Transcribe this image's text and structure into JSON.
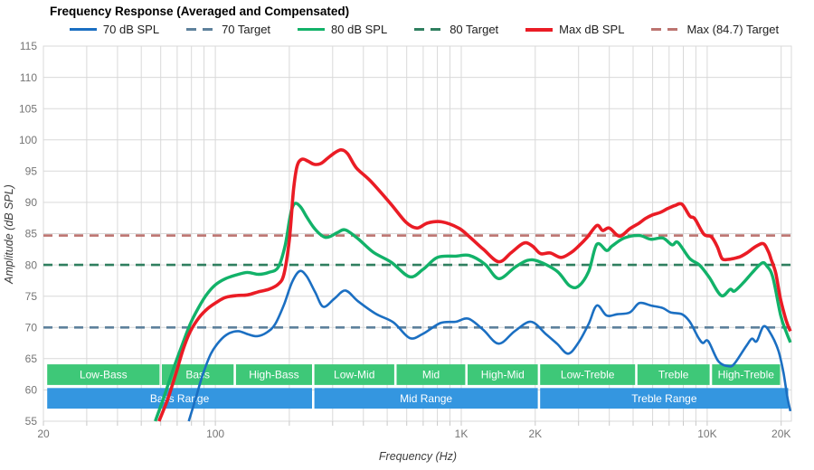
{
  "chart_data": {
    "type": "line",
    "title": "Frequency Response (Averaged and Compensated)",
    "xlabel": "Frequency (Hz)",
    "ylabel": "Amplitude (dB SPL)",
    "x_scale": "log",
    "xlim": [
      20,
      22000
    ],
    "ylim": [
      55,
      115
    ],
    "grid": true,
    "legend_position": "top",
    "colors": {
      "grid": "#d9d9d9",
      "tick_text": "#757575",
      "axis_title_text": "#3c3c3c",
      "blue_curve": "#1b6fc2",
      "green_curve": "#12b269",
      "red_curve": "#ea1c25",
      "blue_target": "#5e819c",
      "green_target": "#2f7f5f",
      "red_target": "#bc7470",
      "sub_band": "#3ec878",
      "main_band": "#3496e0"
    },
    "y_ticks": [
      55,
      60,
      65,
      70,
      75,
      80,
      85,
      90,
      95,
      100,
      105,
      110,
      115
    ],
    "x_ticks": [
      {
        "f": 20,
        "label": "20"
      },
      {
        "f": 100,
        "label": "100"
      },
      {
        "f": 1000,
        "label": "1K"
      },
      {
        "f": 2000,
        "label": "2K"
      },
      {
        "f": 10000,
        "label": "10K"
      },
      {
        "f": 20000,
        "label": "20K"
      }
    ],
    "x_gridlines": [
      20,
      30,
      40,
      50,
      60,
      70,
      80,
      90,
      100,
      200,
      300,
      400,
      500,
      600,
      700,
      800,
      900,
      1000,
      2000,
      3000,
      4000,
      5000,
      6000,
      7000,
      8000,
      9000,
      10000,
      20000
    ],
    "targets": [
      {
        "name": "70 Target",
        "value": 70,
        "color": "#5e819c"
      },
      {
        "name": "80 Target",
        "value": 80,
        "color": "#2f7f5f"
      },
      {
        "name": "Max (84.7) Target",
        "value": 84.7,
        "color": "#bc7470"
      }
    ],
    "series": [
      {
        "name": "70 dB SPL",
        "color": "#1b6fc2",
        "width": 2.6,
        "points": [
          [
            78,
            55
          ],
          [
            83,
            58.5
          ],
          [
            89,
            62.5
          ],
          [
            96,
            65.8
          ],
          [
            104,
            67.8
          ],
          [
            113,
            69
          ],
          [
            124,
            69.4
          ],
          [
            136,
            68.9
          ],
          [
            148,
            68.6
          ],
          [
            162,
            69.2
          ],
          [
            175,
            70.5
          ],
          [
            190,
            73.6
          ],
          [
            205,
            77.2
          ],
          [
            220,
            79
          ],
          [
            235,
            78.2
          ],
          [
            255,
            75.6
          ],
          [
            275,
            73.3
          ],
          [
            305,
            74.6
          ],
          [
            338,
            75.9
          ],
          [
            380,
            74.2
          ],
          [
            448,
            72.2
          ],
          [
            530,
            70.8
          ],
          [
            617,
            68.3
          ],
          [
            700,
            69
          ],
          [
            823,
            70.7
          ],
          [
            950,
            70.9
          ],
          [
            1070,
            71.4
          ],
          [
            1230,
            69.6
          ],
          [
            1420,
            67.4
          ],
          [
            1650,
            69.4
          ],
          [
            1920,
            70.9
          ],
          [
            2200,
            69
          ],
          [
            2450,
            67.4
          ],
          [
            2720,
            65.8
          ],
          [
            3000,
            67.6
          ],
          [
            3300,
            70.6
          ],
          [
            3560,
            73.5
          ],
          [
            3900,
            71.9
          ],
          [
            4300,
            72.1
          ],
          [
            4850,
            72.4
          ],
          [
            5300,
            73.9
          ],
          [
            5900,
            73.5
          ],
          [
            6600,
            73.1
          ],
          [
            7100,
            72.4
          ],
          [
            7900,
            72.1
          ],
          [
            8500,
            70.9
          ],
          [
            9200,
            68.4
          ],
          [
            9600,
            67.5
          ],
          [
            10100,
            67.8
          ],
          [
            11100,
            64.6
          ],
          [
            12200,
            63.8
          ],
          [
            12900,
            64.2
          ],
          [
            14400,
            67
          ],
          [
            15200,
            68.2
          ],
          [
            15900,
            67.8
          ],
          [
            17000,
            70.2
          ],
          [
            18300,
            68.7
          ],
          [
            19500,
            66.2
          ],
          [
            20400,
            62.9
          ],
          [
            21200,
            58.8
          ],
          [
            21800,
            56.6
          ]
        ]
      },
      {
        "name": "80 dB SPL",
        "color": "#12b269",
        "width": 3.4,
        "points": [
          [
            57,
            55
          ],
          [
            62,
            59
          ],
          [
            67,
            63
          ],
          [
            73,
            67
          ],
          [
            79,
            70.5
          ],
          [
            85,
            73
          ],
          [
            92,
            75.2
          ],
          [
            100,
            76.8
          ],
          [
            110,
            77.8
          ],
          [
            122,
            78.4
          ],
          [
            135,
            78.8
          ],
          [
            150,
            78.5
          ],
          [
            165,
            78.8
          ],
          [
            180,
            79.6
          ],
          [
            192,
            83
          ],
          [
            202,
            88
          ],
          [
            210,
            89.8
          ],
          [
            222,
            89.3
          ],
          [
            235,
            87.7
          ],
          [
            250,
            86.1
          ],
          [
            265,
            85
          ],
          [
            280,
            84.4
          ],
          [
            295,
            84.6
          ],
          [
            315,
            85.2
          ],
          [
            338,
            85.6
          ],
          [
            380,
            84.2
          ],
          [
            440,
            82
          ],
          [
            520,
            80.4
          ],
          [
            617,
            78.1
          ],
          [
            700,
            79.3
          ],
          [
            800,
            81.2
          ],
          [
            950,
            81.4
          ],
          [
            1080,
            81.5
          ],
          [
            1250,
            80.1
          ],
          [
            1420,
            77.8
          ],
          [
            1650,
            79.6
          ],
          [
            1850,
            80.7
          ],
          [
            2050,
            80.6
          ],
          [
            2450,
            79
          ],
          [
            2750,
            76.7
          ],
          [
            3000,
            76.6
          ],
          [
            3300,
            79
          ],
          [
            3560,
            83.3
          ],
          [
            3900,
            82.3
          ],
          [
            4100,
            83
          ],
          [
            4600,
            84.3
          ],
          [
            5300,
            84.7
          ],
          [
            5900,
            84.1
          ],
          [
            6600,
            84.3
          ],
          [
            7200,
            83.2
          ],
          [
            7600,
            83.6
          ],
          [
            8500,
            81
          ],
          [
            9300,
            80
          ],
          [
            10200,
            78
          ],
          [
            11400,
            75.1
          ],
          [
            12400,
            76.1
          ],
          [
            12900,
            75.8
          ],
          [
            14000,
            77.1
          ],
          [
            15200,
            78.7
          ],
          [
            16700,
            80.3
          ],
          [
            17500,
            79.8
          ],
          [
            18500,
            78
          ],
          [
            19900,
            71.9
          ],
          [
            21000,
            69.2
          ],
          [
            21800,
            67.6
          ]
        ]
      },
      {
        "name": "Max dB SPL",
        "color": "#ea1c25",
        "width": 3.6,
        "points": [
          [
            59,
            55
          ],
          [
            64,
            58.5
          ],
          [
            69,
            62.5
          ],
          [
            74,
            66.5
          ],
          [
            79,
            69.3
          ],
          [
            86,
            71.6
          ],
          [
            93,
            73
          ],
          [
            101,
            74
          ],
          [
            110,
            74.8
          ],
          [
            122,
            75.1
          ],
          [
            135,
            75.2
          ],
          [
            150,
            75.7
          ],
          [
            165,
            76.1
          ],
          [
            180,
            76.9
          ],
          [
            190,
            78.5
          ],
          [
            200,
            84
          ],
          [
            208,
            92
          ],
          [
            215,
            95.8
          ],
          [
            225,
            96.9
          ],
          [
            238,
            96.6
          ],
          [
            252,
            96.1
          ],
          [
            268,
            96.2
          ],
          [
            285,
            97
          ],
          [
            305,
            97.9
          ],
          [
            325,
            98.4
          ],
          [
            345,
            97.8
          ],
          [
            375,
            95.5
          ],
          [
            428,
            93.4
          ],
          [
            516,
            89.8
          ],
          [
            597,
            86.8
          ],
          [
            661,
            85.9
          ],
          [
            730,
            86.7
          ],
          [
            830,
            86.9
          ],
          [
            975,
            85.9
          ],
          [
            1080,
            84.5
          ],
          [
            1230,
            82.5
          ],
          [
            1420,
            80.5
          ],
          [
            1600,
            82
          ],
          [
            1800,
            83.5
          ],
          [
            1950,
            83
          ],
          [
            2100,
            81.8
          ],
          [
            2300,
            81.9
          ],
          [
            2550,
            81.2
          ],
          [
            2800,
            82
          ],
          [
            3000,
            83
          ],
          [
            3250,
            84.4
          ],
          [
            3560,
            86.3
          ],
          [
            3760,
            85.5
          ],
          [
            4000,
            85.9
          ],
          [
            4400,
            84.6
          ],
          [
            4850,
            85.8
          ],
          [
            5300,
            86.7
          ],
          [
            5600,
            87.4
          ],
          [
            6000,
            88
          ],
          [
            6450,
            88.4
          ],
          [
            6900,
            89
          ],
          [
            7400,
            89.5
          ],
          [
            7900,
            89.7
          ],
          [
            8500,
            87.8
          ],
          [
            8900,
            87.4
          ],
          [
            9700,
            84.9
          ],
          [
            10400,
            84.5
          ],
          [
            11000,
            82.9
          ],
          [
            11500,
            81
          ],
          [
            12200,
            80.9
          ],
          [
            12700,
            81
          ],
          [
            13600,
            81.3
          ],
          [
            14600,
            82
          ],
          [
            15700,
            82.9
          ],
          [
            16900,
            83.4
          ],
          [
            17700,
            82.2
          ],
          [
            18200,
            80.9
          ],
          [
            19000,
            78.7
          ],
          [
            19800,
            74.8
          ],
          [
            20700,
            71.8
          ],
          [
            21300,
            70.3
          ],
          [
            21800,
            69.4
          ]
        ]
      }
    ],
    "band_rows": [
      {
        "name": "sub-ranges",
        "color": "#3ec878",
        "db_top": 64.1,
        "db_bottom": 60.8,
        "segments": [
          {
            "label": "Low-Bass",
            "from": 20.5,
            "to": 60
          },
          {
            "label": "Bass",
            "from": 60,
            "to": 120
          },
          {
            "label": "High-Bass",
            "from": 120,
            "to": 250
          },
          {
            "label": "Low-Mid",
            "from": 250,
            "to": 540
          },
          {
            "label": "Mid",
            "from": 540,
            "to": 1050
          },
          {
            "label": "High-Mid",
            "from": 1050,
            "to": 2070
          },
          {
            "label": "Low-Treble",
            "from": 2070,
            "to": 5150
          },
          {
            "label": "Treble",
            "from": 5150,
            "to": 10350
          },
          {
            "label": "High-Treble",
            "from": 10350,
            "to": 20000
          }
        ]
      },
      {
        "name": "main-ranges",
        "color": "#3496e0",
        "db_top": 60.3,
        "db_bottom": 57.0,
        "segments": [
          {
            "label": "Bass Range",
            "from": 20.5,
            "to": 250
          },
          {
            "label": "Mid Range",
            "from": 250,
            "to": 2070
          },
          {
            "label": "Treble Range",
            "from": 2070,
            "to": 21600
          }
        ]
      }
    ]
  },
  "legend": {
    "items": [
      {
        "label": "70 dB SPL",
        "color": "#1b6fc2",
        "style": "solid",
        "thickness": 3
      },
      {
        "label": "70 Target",
        "color": "#5e819c",
        "style": "dashed",
        "thickness": 3
      },
      {
        "label": "80 dB SPL",
        "color": "#12b269",
        "style": "solid",
        "thickness": 3
      },
      {
        "label": "80 Target",
        "color": "#2f7f5f",
        "style": "dashed",
        "thickness": 3
      },
      {
        "label": "Max dB SPL",
        "color": "#ea1c25",
        "style": "solid",
        "thickness": 4
      },
      {
        "label": "Max (84.7) Target",
        "color": "#bc7470",
        "style": "dashed",
        "thickness": 3
      }
    ]
  }
}
